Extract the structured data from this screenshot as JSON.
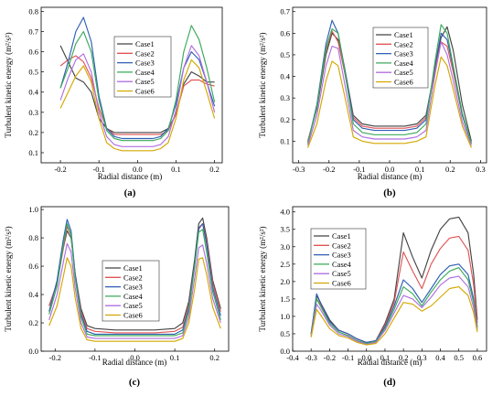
{
  "series_names": [
    "Case1",
    "Case2",
    "Case3",
    "Case4",
    "Case5",
    "Case6"
  ],
  "series_colors": [
    "#444444",
    "#e05555",
    "#2f5fb3",
    "#3aaa5a",
    "#b070e0",
    "#d4a800"
  ],
  "chart_data": [
    {
      "type": "line",
      "panel_label": "(a)",
      "xlabel": "Radial distance (m)",
      "ylabel": "Turbulent kinetic energy (m²/s²)",
      "xlim": [
        -0.25,
        0.22
      ],
      "ylim": [
        0.05,
        0.82
      ],
      "xticks": [
        -0.2,
        -0.1,
        0.0,
        0.1,
        0.2
      ],
      "xticklabels": [
        "-0.2",
        "-0.1",
        "0.0",
        "0.1",
        "0.2"
      ],
      "yticks": [
        0.1,
        0.2,
        0.3,
        0.4,
        0.5,
        0.6,
        0.7,
        0.8
      ],
      "yticklabels": [
        "0.1",
        "0.2",
        "0.3",
        "0.4",
        "0.5",
        "0.6",
        "0.7",
        "0.8"
      ],
      "legend_position": "upper-center",
      "x": [
        -0.2,
        -0.18,
        -0.16,
        -0.14,
        -0.12,
        -0.1,
        -0.08,
        -0.06,
        -0.04,
        -0.02,
        0.0,
        0.02,
        0.04,
        0.06,
        0.08,
        0.1,
        0.12,
        0.14,
        0.16,
        0.18,
        0.2
      ],
      "series": [
        {
          "name": "Case1",
          "values": [
            0.63,
            0.55,
            0.47,
            0.45,
            0.4,
            0.27,
            0.22,
            0.2,
            0.2,
            0.2,
            0.2,
            0.2,
            0.2,
            0.2,
            0.22,
            0.29,
            0.44,
            0.5,
            0.48,
            0.45,
            0.45
          ]
        },
        {
          "name": "Case2",
          "values": [
            0.53,
            0.56,
            0.58,
            0.55,
            0.47,
            0.32,
            0.22,
            0.19,
            0.19,
            0.19,
            0.19,
            0.19,
            0.19,
            0.19,
            0.21,
            0.29,
            0.43,
            0.46,
            0.46,
            0.44,
            0.43
          ]
        },
        {
          "name": "Case3",
          "values": [
            0.42,
            0.55,
            0.7,
            0.77,
            0.65,
            0.38,
            0.22,
            0.18,
            0.17,
            0.17,
            0.17,
            0.17,
            0.17,
            0.18,
            0.22,
            0.34,
            0.52,
            0.6,
            0.56,
            0.45,
            0.33
          ]
        },
        {
          "name": "Case4",
          "values": [
            0.42,
            0.52,
            0.64,
            0.7,
            0.6,
            0.36,
            0.21,
            0.17,
            0.16,
            0.16,
            0.16,
            0.16,
            0.16,
            0.17,
            0.21,
            0.36,
            0.6,
            0.73,
            0.66,
            0.52,
            0.35
          ]
        },
        {
          "name": "Case5",
          "values": [
            0.36,
            0.47,
            0.56,
            0.59,
            0.5,
            0.3,
            0.18,
            0.14,
            0.13,
            0.13,
            0.13,
            0.13,
            0.13,
            0.14,
            0.18,
            0.31,
            0.52,
            0.63,
            0.58,
            0.45,
            0.3
          ]
        },
        {
          "name": "Case6",
          "values": [
            0.32,
            0.4,
            0.48,
            0.53,
            0.45,
            0.27,
            0.15,
            0.12,
            0.11,
            0.11,
            0.11,
            0.11,
            0.11,
            0.12,
            0.15,
            0.27,
            0.46,
            0.56,
            0.52,
            0.4,
            0.27
          ]
        }
      ]
    },
    {
      "type": "line",
      "panel_label": "(b)",
      "xlabel": "Radial distance (m)",
      "ylabel": "Turbulent kinetic energy (m²/s²)",
      "xlim": [
        -0.32,
        0.32
      ],
      "ylim": [
        0.0,
        0.72
      ],
      "xticks": [
        -0.3,
        -0.2,
        -0.1,
        0.0,
        0.1,
        0.2,
        0.3
      ],
      "xticklabels": [
        "-0.3",
        "-0.2",
        "-0.1",
        "0.0",
        "0.1",
        "0.2",
        "0.3"
      ],
      "yticks": [
        0.1,
        0.2,
        0.3,
        0.4,
        0.5,
        0.6,
        0.7
      ],
      "yticklabels": [
        "0.1",
        "0.2",
        "0.3",
        "0.4",
        "0.5",
        "0.6",
        "0.7"
      ],
      "legend_position": "upper-center",
      "x": [
        -0.27,
        -0.24,
        -0.21,
        -0.19,
        -0.17,
        -0.15,
        -0.12,
        -0.09,
        -0.05,
        0.0,
        0.05,
        0.09,
        0.12,
        0.15,
        0.17,
        0.19,
        0.21,
        0.24,
        0.27
      ],
      "series": [
        {
          "name": "Case1",
          "values": [
            0.1,
            0.25,
            0.5,
            0.6,
            0.57,
            0.45,
            0.22,
            0.18,
            0.17,
            0.17,
            0.17,
            0.18,
            0.22,
            0.44,
            0.58,
            0.63,
            0.52,
            0.27,
            0.1
          ]
        },
        {
          "name": "Case2",
          "values": [
            0.1,
            0.26,
            0.52,
            0.61,
            0.56,
            0.43,
            0.21,
            0.17,
            0.16,
            0.16,
            0.16,
            0.17,
            0.21,
            0.43,
            0.56,
            0.54,
            0.42,
            0.22,
            0.09
          ]
        },
        {
          "name": "Case3",
          "values": [
            0.09,
            0.27,
            0.55,
            0.66,
            0.6,
            0.45,
            0.2,
            0.16,
            0.15,
            0.15,
            0.15,
            0.16,
            0.2,
            0.45,
            0.6,
            0.57,
            0.44,
            0.22,
            0.09
          ]
        },
        {
          "name": "Case4",
          "values": [
            0.09,
            0.26,
            0.53,
            0.62,
            0.6,
            0.44,
            0.18,
            0.14,
            0.13,
            0.13,
            0.13,
            0.14,
            0.18,
            0.47,
            0.64,
            0.6,
            0.45,
            0.23,
            0.09
          ]
        },
        {
          "name": "Case5",
          "values": [
            0.08,
            0.22,
            0.45,
            0.54,
            0.53,
            0.38,
            0.15,
            0.12,
            0.11,
            0.11,
            0.11,
            0.12,
            0.15,
            0.41,
            0.56,
            0.5,
            0.38,
            0.19,
            0.08
          ]
        },
        {
          "name": "Case6",
          "values": [
            0.07,
            0.18,
            0.38,
            0.47,
            0.45,
            0.32,
            0.12,
            0.1,
            0.09,
            0.09,
            0.09,
            0.1,
            0.12,
            0.36,
            0.49,
            0.45,
            0.34,
            0.17,
            0.07
          ]
        }
      ]
    },
    {
      "type": "line",
      "panel_label": "(c)",
      "xlabel": "Radial distance (m)",
      "ylabel": "Turbulent kinetic energy (m²/s²)",
      "xlim": [
        -0.235,
        0.235
      ],
      "ylim": [
        0.0,
        1.02
      ],
      "xticks": [
        -0.2,
        -0.1,
        0.0,
        0.1,
        0.2
      ],
      "xticklabels": [
        "-0.2",
        "-0.1",
        "0.0",
        "0.1",
        "0.2"
      ],
      "yticks": [
        0.0,
        0.2,
        0.4,
        0.6,
        0.8,
        1.0
      ],
      "yticklabels": [
        "0.0",
        "0.2",
        "0.4",
        "0.6",
        "0.8",
        "1.0"
      ],
      "legend_position": "center",
      "x": [
        -0.215,
        -0.195,
        -0.18,
        -0.17,
        -0.16,
        -0.15,
        -0.135,
        -0.12,
        -0.1,
        -0.05,
        0.0,
        0.05,
        0.1,
        0.12,
        0.135,
        0.15,
        0.16,
        0.17,
        0.18,
        0.195,
        0.215
      ],
      "series": [
        {
          "name": "Case1",
          "values": [
            0.32,
            0.48,
            0.72,
            0.85,
            0.8,
            0.55,
            0.3,
            0.18,
            0.16,
            0.15,
            0.15,
            0.15,
            0.16,
            0.2,
            0.35,
            0.65,
            0.9,
            0.94,
            0.8,
            0.5,
            0.3
          ]
        },
        {
          "name": "Case2",
          "values": [
            0.32,
            0.48,
            0.72,
            0.88,
            0.82,
            0.55,
            0.28,
            0.16,
            0.14,
            0.13,
            0.13,
            0.13,
            0.14,
            0.17,
            0.32,
            0.62,
            0.86,
            0.9,
            0.77,
            0.48,
            0.28
          ]
        },
        {
          "name": "Case3",
          "values": [
            0.28,
            0.5,
            0.78,
            0.93,
            0.85,
            0.55,
            0.26,
            0.14,
            0.12,
            0.12,
            0.12,
            0.12,
            0.12,
            0.15,
            0.3,
            0.62,
            0.87,
            0.9,
            0.75,
            0.45,
            0.25
          ]
        },
        {
          "name": "Case4",
          "values": [
            0.26,
            0.46,
            0.74,
            0.9,
            0.82,
            0.52,
            0.24,
            0.12,
            0.11,
            0.11,
            0.11,
            0.11,
            0.11,
            0.13,
            0.28,
            0.6,
            0.84,
            0.86,
            0.7,
            0.42,
            0.22
          ]
        },
        {
          "name": "Case5",
          "values": [
            0.22,
            0.4,
            0.62,
            0.76,
            0.7,
            0.45,
            0.2,
            0.1,
            0.09,
            0.09,
            0.09,
            0.09,
            0.09,
            0.11,
            0.24,
            0.52,
            0.73,
            0.75,
            0.62,
            0.37,
            0.2
          ]
        },
        {
          "name": "Case6",
          "values": [
            0.18,
            0.32,
            0.52,
            0.66,
            0.6,
            0.38,
            0.16,
            0.08,
            0.07,
            0.07,
            0.07,
            0.07,
            0.07,
            0.09,
            0.2,
            0.44,
            0.65,
            0.66,
            0.54,
            0.31,
            0.16
          ]
        }
      ]
    },
    {
      "type": "line",
      "panel_label": "(d)",
      "xlabel": "Radial distance (m)",
      "ylabel": "Turbulent kinetic energy (m²/s²)",
      "xlim": [
        -0.4,
        0.65
      ],
      "ylim": [
        0.0,
        4.15
      ],
      "xticks": [
        -0.4,
        -0.3,
        -0.2,
        -0.1,
        0.0,
        0.1,
        0.2,
        0.3,
        0.4,
        0.5,
        0.6
      ],
      "xticklabels": [
        "-0.4",
        "-0.3",
        "-0.2",
        "-0.1",
        "0.0",
        "0.1",
        "0.2",
        "0.3",
        "0.4",
        "0.5",
        "0.6"
      ],
      "yticks": [
        0.0,
        0.5,
        1.0,
        1.5,
        2.0,
        2.5,
        3.0,
        3.5,
        4.0
      ],
      "yticklabels": [
        "0.0",
        "0.5",
        "1.0",
        "1.5",
        "2.0",
        "2.5",
        "3.0",
        "3.5",
        "4.0"
      ],
      "legend_position": "upper-left",
      "x": [
        -0.3,
        -0.27,
        -0.25,
        -0.2,
        -0.15,
        -0.1,
        -0.05,
        0.0,
        0.05,
        0.1,
        0.15,
        0.2,
        0.25,
        0.3,
        0.35,
        0.4,
        0.45,
        0.5,
        0.55,
        0.58,
        0.6
      ],
      "series": [
        {
          "name": "Case1",
          "values": [
            0.5,
            1.6,
            1.4,
            0.9,
            0.6,
            0.5,
            0.35,
            0.25,
            0.3,
            0.8,
            1.5,
            3.4,
            2.7,
            2.1,
            2.9,
            3.5,
            3.8,
            3.85,
            3.4,
            2.2,
            0.9
          ]
        },
        {
          "name": "Case2",
          "values": [
            0.5,
            1.5,
            1.35,
            0.85,
            0.6,
            0.5,
            0.35,
            0.25,
            0.3,
            0.75,
            1.4,
            2.85,
            2.3,
            1.8,
            2.5,
            2.95,
            3.25,
            3.3,
            2.9,
            1.9,
            0.8
          ]
        },
        {
          "name": "Case3",
          "values": [
            0.5,
            1.65,
            1.4,
            0.85,
            0.6,
            0.5,
            0.35,
            0.25,
            0.3,
            0.7,
            1.3,
            2.05,
            1.8,
            1.4,
            1.8,
            2.2,
            2.45,
            2.5,
            2.2,
            1.5,
            0.7
          ]
        },
        {
          "name": "Case4",
          "values": [
            0.45,
            1.5,
            1.3,
            0.8,
            0.55,
            0.45,
            0.3,
            0.22,
            0.28,
            0.65,
            1.2,
            1.85,
            1.65,
            1.3,
            1.7,
            2.05,
            2.3,
            2.4,
            2.05,
            1.4,
            0.65
          ]
        },
        {
          "name": "Case5",
          "values": [
            0.42,
            1.35,
            1.2,
            0.75,
            0.5,
            0.42,
            0.28,
            0.2,
            0.25,
            0.6,
            1.1,
            1.6,
            1.5,
            1.25,
            1.55,
            1.9,
            2.1,
            2.15,
            1.85,
            1.25,
            0.6
          ]
        },
        {
          "name": "Case6",
          "values": [
            0.4,
            1.2,
            1.05,
            0.65,
            0.45,
            0.38,
            0.25,
            0.18,
            0.22,
            0.5,
            0.95,
            1.4,
            1.35,
            1.15,
            1.3,
            1.55,
            1.8,
            1.85,
            1.6,
            1.1,
            0.55
          ]
        }
      ]
    }
  ]
}
